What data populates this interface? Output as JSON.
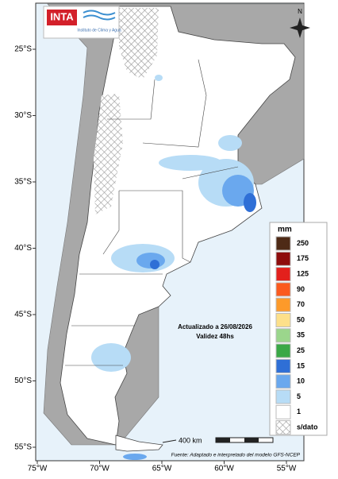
{
  "logo": {
    "brand": "INTA",
    "institute": "Instituto de Clima y Agua"
  },
  "map": {
    "north": "N",
    "lat_labels": [
      "25°S",
      "30°S",
      "35°S",
      "40°S",
      "45°S",
      "50°S",
      "55°S"
    ],
    "lon_labels": [
      "75°W",
      "70°W",
      "65°W",
      "60°W",
      "55°W"
    ]
  },
  "legend": {
    "title": "mm",
    "items": [
      {
        "label": "250",
        "color": "#4e2a16"
      },
      {
        "label": "175",
        "color": "#8e0c0c"
      },
      {
        "label": "125",
        "color": "#e3201c"
      },
      {
        "label": "90",
        "color": "#fb5a1e"
      },
      {
        "label": "70",
        "color": "#fd9a2a"
      },
      {
        "label": "50",
        "color": "#fde08a"
      },
      {
        "label": "35",
        "color": "#9bd68c"
      },
      {
        "label": "25",
        "color": "#3aa846"
      },
      {
        "label": "15",
        "color": "#2f6fd6"
      },
      {
        "label": "10",
        "color": "#6aa8ee"
      },
      {
        "label": "5",
        "color": "#b7dcf6"
      },
      {
        "label": "1",
        "color": "#ffffff"
      },
      {
        "label": "s/dato",
        "color": "hatch"
      }
    ]
  },
  "annotation": {
    "line1": "Actualizado a 26/08/2026",
    "line2": "Validez 48hs"
  },
  "scale": "400 km",
  "source": "Fuente: Adaptado e interpretado del modelo GFS-NCEP"
}
